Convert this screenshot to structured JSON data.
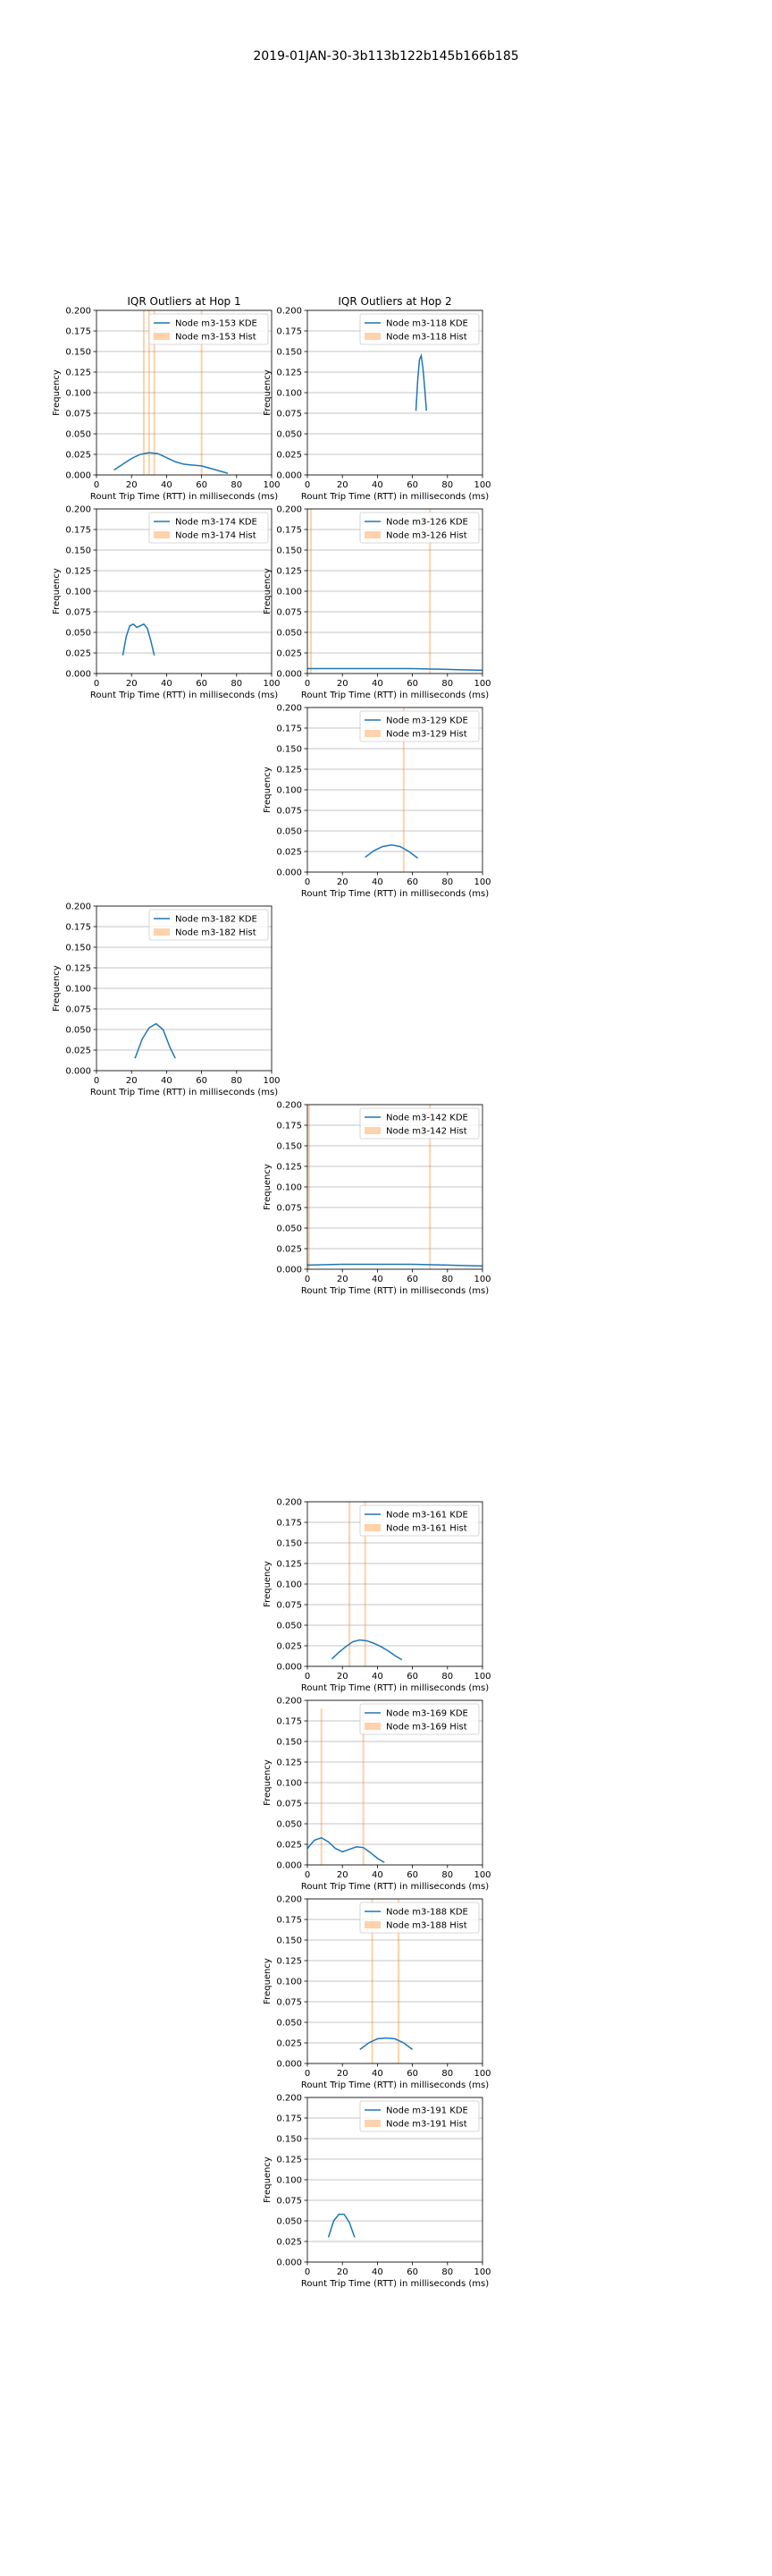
{
  "figure": {
    "suptitle": "2019-01JAN-30-3b113b122b145b166b185",
    "columns": [
      "IQR Outliers at Hop 1",
      "IQR Outliers at Hop 2"
    ]
  },
  "colors": {
    "kde": "#1f77b4",
    "hist": "#ff7f0e",
    "grid": "#b0b0b0"
  },
  "chart_data": [
    {
      "type": "line",
      "col": 0,
      "row": 0,
      "title": "IQR Outliers at Hop 1",
      "xlabel": "Rount Trip Time (RTT) in milliseconds (ms)",
      "ylabel": "Frequency",
      "xlim": [
        0,
        100
      ],
      "ylim": [
        0,
        0.2
      ],
      "grid": true,
      "legend": "top-right",
      "series": [
        {
          "name": "Node m3-153 KDE",
          "kind": "kde",
          "x": [
            10,
            15,
            20,
            25,
            30,
            35,
            40,
            45,
            50,
            55,
            60,
            65,
            70,
            75
          ],
          "y": [
            0.006,
            0.013,
            0.02,
            0.025,
            0.027,
            0.026,
            0.021,
            0.016,
            0.013,
            0.012,
            0.011,
            0.008,
            0.005,
            0.002
          ]
        },
        {
          "name": "Node m3-153 Hist",
          "kind": "hist",
          "x": [
            27,
            30,
            33,
            60
          ],
          "y": [
            0.2,
            0.2,
            0.2,
            0.2
          ]
        }
      ]
    },
    {
      "type": "line",
      "col": 1,
      "row": 0,
      "title": "IQR Outliers at Hop 2",
      "xlabel": "Rount Trip Time (RTT) in milliseconds (ms)",
      "ylabel": "Frequency",
      "xlim": [
        0,
        100
      ],
      "ylim": [
        0,
        0.2
      ],
      "grid": true,
      "legend": "top-right",
      "series": [
        {
          "name": "Node m3-118 KDE",
          "kind": "kde",
          "x": [
            62,
            63,
            64,
            65,
            66,
            67,
            68
          ],
          "y": [
            0.078,
            0.115,
            0.14,
            0.145,
            0.13,
            0.105,
            0.078
          ]
        },
        {
          "name": "Node m3-118 Hist",
          "kind": "hist",
          "x": [],
          "y": []
        }
      ]
    },
    {
      "type": "line",
      "col": 0,
      "row": 1,
      "xlabel": "Rount Trip Time (RTT) in milliseconds (ms)",
      "ylabel": "Frequency",
      "xlim": [
        0,
        100
      ],
      "ylim": [
        0,
        0.2
      ],
      "grid": true,
      "legend": "top-right",
      "series": [
        {
          "name": "Node m3-174 KDE",
          "kind": "kde",
          "x": [
            15,
            17,
            19,
            21,
            23,
            25,
            27,
            29,
            31,
            33
          ],
          "y": [
            0.022,
            0.045,
            0.058,
            0.06,
            0.056,
            0.058,
            0.06,
            0.055,
            0.04,
            0.022
          ]
        },
        {
          "name": "Node m3-174 Hist",
          "kind": "hist",
          "x": [],
          "y": []
        }
      ]
    },
    {
      "type": "line",
      "col": 1,
      "row": 1,
      "xlabel": "Rount Trip Time (RTT) in milliseconds (ms)",
      "ylabel": "Frequency",
      "xlim": [
        0,
        100
      ],
      "ylim": [
        0,
        0.2
      ],
      "grid": true,
      "legend": "top-right",
      "series": [
        {
          "name": "Node m3-126 KDE",
          "kind": "kde",
          "x": [
            0,
            20,
            40,
            60,
            80,
            100
          ],
          "y": [
            0.006,
            0.006,
            0.006,
            0.006,
            0.005,
            0.004
          ]
        },
        {
          "name": "Node m3-126 Hist",
          "kind": "hist",
          "x": [
            2,
            70
          ],
          "y": [
            0.2,
            0.2
          ]
        }
      ]
    },
    {
      "type": "line",
      "col": 1,
      "row": 2,
      "xlabel": "Rount Trip Time (RTT) in milliseconds (ms)",
      "ylabel": "Frequency",
      "xlim": [
        0,
        100
      ],
      "ylim": [
        0,
        0.2
      ],
      "grid": true,
      "legend": "top-right",
      "series": [
        {
          "name": "Node m3-129 KDE",
          "kind": "kde",
          "x": [
            33,
            38,
            43,
            48,
            53,
            58,
            63
          ],
          "y": [
            0.018,
            0.026,
            0.031,
            0.033,
            0.031,
            0.025,
            0.017
          ]
        },
        {
          "name": "Node m3-129 Hist",
          "kind": "hist",
          "x": [
            55
          ],
          "y": [
            0.2
          ]
        }
      ]
    },
    {
      "type": "line",
      "col": 0,
      "row": 3,
      "xlabel": "Rount Trip Time (RTT) in milliseconds (ms)",
      "ylabel": "Frequency",
      "xlim": [
        0,
        100
      ],
      "ylim": [
        0,
        0.2
      ],
      "grid": true,
      "legend": "top-right",
      "series": [
        {
          "name": "Node m3-182 KDE",
          "kind": "kde",
          "x": [
            22,
            26,
            30,
            34,
            38,
            42,
            45
          ],
          "y": [
            0.015,
            0.038,
            0.052,
            0.057,
            0.05,
            0.028,
            0.015
          ]
        },
        {
          "name": "Node m3-182 Hist",
          "kind": "hist",
          "x": [],
          "y": []
        }
      ]
    },
    {
      "type": "line",
      "col": 1,
      "row": 4,
      "xlabel": "Rount Trip Time (RTT) in milliseconds (ms)",
      "ylabel": "Frequency",
      "xlim": [
        0,
        100
      ],
      "ylim": [
        0,
        0.2
      ],
      "grid": true,
      "legend": "top-right",
      "series": [
        {
          "name": "Node m3-142 KDE",
          "kind": "kde",
          "x": [
            0,
            20,
            40,
            60,
            80,
            100
          ],
          "y": [
            0.005,
            0.006,
            0.006,
            0.006,
            0.005,
            0.004
          ]
        },
        {
          "name": "Node m3-142 Hist",
          "kind": "hist",
          "x": [
            1,
            70
          ],
          "y": [
            0.2,
            0.2
          ]
        }
      ]
    },
    {
      "type": "line",
      "col": 1,
      "row": 6,
      "xlabel": "Rount Trip Time (RTT) in milliseconds (ms)",
      "ylabel": "Frequency",
      "xlim": [
        0,
        100
      ],
      "ylim": [
        0,
        0.2
      ],
      "grid": true,
      "legend": "top-right",
      "series": [
        {
          "name": "Node m3-161 KDE",
          "kind": "kde",
          "x": [
            14,
            18,
            22,
            26,
            30,
            34,
            38,
            42,
            46,
            50,
            54
          ],
          "y": [
            0.009,
            0.017,
            0.024,
            0.03,
            0.032,
            0.031,
            0.028,
            0.024,
            0.019,
            0.013,
            0.008
          ]
        },
        {
          "name": "Node m3-161 Hist",
          "kind": "hist",
          "x": [
            24,
            33
          ],
          "y": [
            0.2,
            0.2
          ]
        }
      ]
    },
    {
      "type": "line",
      "col": 1,
      "row": 7,
      "xlabel": "Rount Trip Time (RTT) in milliseconds (ms)",
      "ylabel": "Frequency",
      "xlim": [
        0,
        100
      ],
      "ylim": [
        0,
        0.2
      ],
      "grid": true,
      "legend": "top-right",
      "series": [
        {
          "name": "Node m3-169 KDE",
          "kind": "kde",
          "x": [
            0,
            4,
            8,
            12,
            16,
            20,
            24,
            28,
            32,
            36,
            40,
            44
          ],
          "y": [
            0.02,
            0.03,
            0.033,
            0.028,
            0.02,
            0.016,
            0.019,
            0.022,
            0.021,
            0.015,
            0.008,
            0.003
          ]
        },
        {
          "name": "Node m3-169 Hist",
          "kind": "hist",
          "x": [
            8,
            32
          ],
          "y": [
            0.19,
            0.19
          ]
        }
      ]
    },
    {
      "type": "line",
      "col": 1,
      "row": 8,
      "xlabel": "Rount Trip Time (RTT) in milliseconds (ms)",
      "ylabel": "Frequency",
      "xlim": [
        0,
        100
      ],
      "ylim": [
        0,
        0.2
      ],
      "grid": true,
      "legend": "top-right",
      "series": [
        {
          "name": "Node m3-188 KDE",
          "kind": "kde",
          "x": [
            30,
            35,
            40,
            45,
            50,
            55,
            60
          ],
          "y": [
            0.017,
            0.025,
            0.03,
            0.031,
            0.03,
            0.025,
            0.017
          ]
        },
        {
          "name": "Node m3-188 Hist",
          "kind": "hist",
          "x": [
            37,
            52
          ],
          "y": [
            0.2,
            0.2
          ]
        }
      ]
    },
    {
      "type": "line",
      "col": 1,
      "row": 9,
      "xlabel": "Rount Trip Time (RTT) in milliseconds (ms)",
      "ylabel": "Frequency",
      "xlim": [
        0,
        100
      ],
      "ylim": [
        0,
        0.2
      ],
      "grid": true,
      "legend": "top-right",
      "series": [
        {
          "name": "Node m3-191 KDE",
          "kind": "kde",
          "x": [
            12,
            15,
            18,
            21,
            24,
            27
          ],
          "y": [
            0.03,
            0.05,
            0.058,
            0.058,
            0.048,
            0.03
          ]
        },
        {
          "name": "Node m3-191 Hist",
          "kind": "hist",
          "x": [],
          "y": []
        }
      ]
    }
  ]
}
